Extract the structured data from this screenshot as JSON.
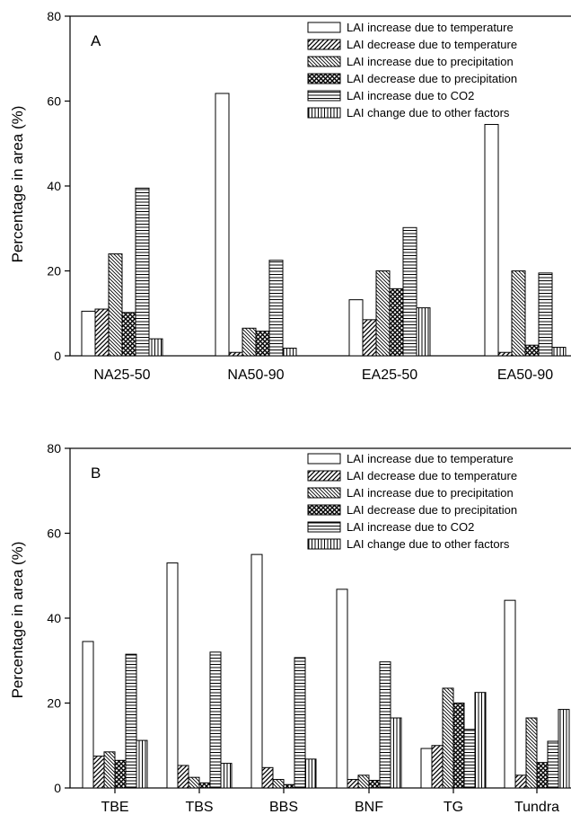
{
  "chart_data": [
    {
      "type": "bar",
      "panel_label": "A",
      "ylabel": "Percentage in area (%)",
      "ylim": [
        0,
        80
      ],
      "yticks": [
        "0",
        "20",
        "40",
        "60",
        "80"
      ],
      "categories": [
        "NA25-50",
        "NA50-90",
        "EA25-50",
        "EA50-90"
      ],
      "legend_position": "top-right",
      "series": [
        {
          "name": "LAI increase due to temperature",
          "pattern": "empty",
          "values": [
            10.5,
            61.8,
            13.2,
            54.5
          ]
        },
        {
          "name": "LAI decrease due to temperature",
          "pattern": "hatch-fwd",
          "values": [
            11.0,
            0.8,
            8.5,
            0.8
          ]
        },
        {
          "name": "LAI increase due to precipitation",
          "pattern": "hatch-back",
          "values": [
            24.0,
            6.5,
            20.0,
            20.0
          ]
        },
        {
          "name": "LAI decrease due to precipitation",
          "pattern": "crosshatch",
          "values": [
            10.2,
            5.8,
            15.8,
            2.5
          ]
        },
        {
          "name": "LAI increase due to CO2",
          "pattern": "horizontal",
          "values": [
            39.5,
            22.5,
            30.2,
            19.5
          ]
        },
        {
          "name": "LAI change due to other factors",
          "pattern": "vertical",
          "values": [
            4.0,
            1.8,
            11.3,
            2.0
          ]
        }
      ]
    },
    {
      "type": "bar",
      "panel_label": "B",
      "ylabel": "Percentage in area (%)",
      "ylim": [
        0,
        80
      ],
      "yticks": [
        "0",
        "20",
        "40",
        "60",
        "80"
      ],
      "categories": [
        "TBE",
        "TBS",
        "BBS",
        "BNF",
        "TG",
        "Tundra"
      ],
      "legend_position": "top-right",
      "series": [
        {
          "name": "LAI increase due to temperature",
          "pattern": "empty",
          "values": [
            34.5,
            53.0,
            55.0,
            46.8,
            9.3,
            44.2
          ]
        },
        {
          "name": "LAI decrease due to temperature",
          "pattern": "hatch-fwd",
          "values": [
            7.5,
            5.3,
            4.8,
            2.0,
            10.0,
            3.0
          ]
        },
        {
          "name": "LAI increase due to precipitation",
          "pattern": "hatch-back",
          "values": [
            8.5,
            2.5,
            2.0,
            3.0,
            23.5,
            16.5
          ]
        },
        {
          "name": "LAI decrease due to precipitation",
          "pattern": "crosshatch",
          "values": [
            6.5,
            1.2,
            0.8,
            1.8,
            20.0,
            6.0
          ]
        },
        {
          "name": "LAI increase due to CO2",
          "pattern": "horizontal",
          "values": [
            31.5,
            32.0,
            30.7,
            29.7,
            13.8,
            11.0
          ]
        },
        {
          "name": "LAI change due to other factors",
          "pattern": "vertical",
          "values": [
            11.2,
            5.8,
            6.8,
            16.5,
            22.5,
            18.5
          ]
        }
      ]
    }
  ]
}
